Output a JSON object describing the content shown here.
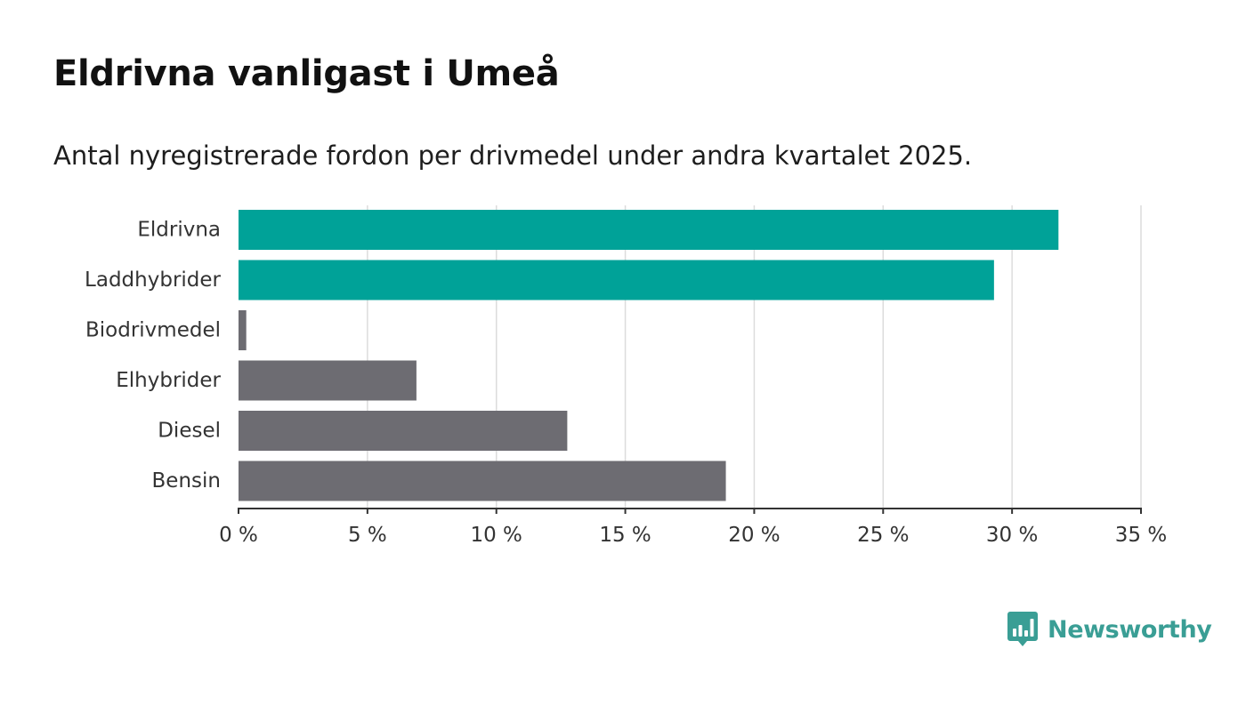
{
  "title": "Eldrivna vanligast i Umeå",
  "subtitle": "Antal nyregistrerade fordon per drivmedel under andra kvartalet 2025.",
  "brand": {
    "name": "Newsworthy",
    "icon": "bar-chart-speech-bubble-icon",
    "color": "#3a9e95"
  },
  "chart_data": {
    "type": "bar",
    "orientation": "horizontal",
    "categories": [
      "Eldrivna",
      "Laddhybrider",
      "Biodrivmedel",
      "Elhybrider",
      "Diesel",
      "Bensin"
    ],
    "values": [
      31.8,
      29.3,
      0.3,
      6.9,
      12.75,
      18.9
    ],
    "colors": [
      "#00a298",
      "#00a298",
      "#6d6c72",
      "#6d6c72",
      "#6d6c72",
      "#6d6c72"
    ],
    "xlim": [
      0,
      35
    ],
    "xticks": [
      0,
      5,
      10,
      15,
      20,
      25,
      30,
      35
    ],
    "xtick_labels": [
      "0 %",
      "5 %",
      "10 %",
      "15 %",
      "20 %",
      "25 %",
      "30 %",
      "35 %"
    ],
    "grid": "vertical",
    "legend": "none"
  }
}
